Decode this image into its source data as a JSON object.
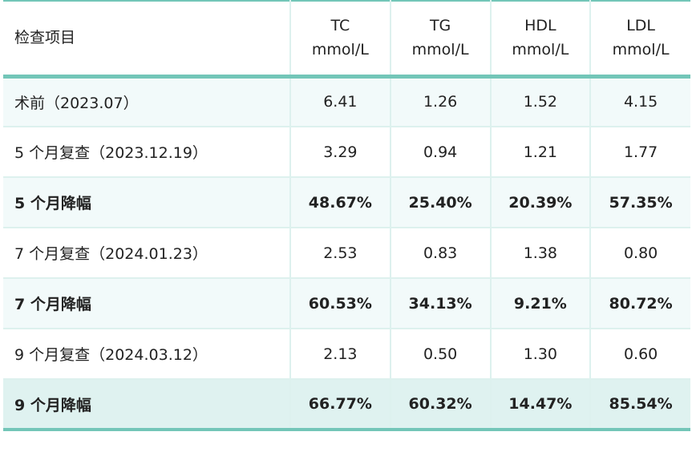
{
  "table": {
    "headers": [
      {
        "line1": "检查项目",
        "line2": ""
      },
      {
        "line1": "TC",
        "line2": "mmol/L"
      },
      {
        "line1": "TG",
        "line2": "mmol/L"
      },
      {
        "line1": "HDL",
        "line2": "mmol/L"
      },
      {
        "line1": "LDL",
        "line2": "mmol/L"
      }
    ],
    "rows": [
      {
        "label": "术前（2023.07）",
        "tc": "6.41",
        "tg": "1.26",
        "hdl": "1.52",
        "ldl": "4.15"
      },
      {
        "label": "5 个月复查（2023.12.19）",
        "tc": "3.29",
        "tg": "0.94",
        "hdl": "1.21",
        "ldl": "1.77"
      },
      {
        "label": "5 个月降幅",
        "tc": "48.67%",
        "tg": "25.40%",
        "hdl": "20.39%",
        "ldl": "57.35%"
      },
      {
        "label": "7 个月复查（2024.01.23）",
        "tc": "2.53",
        "tg": "0.83",
        "hdl": "1.38",
        "ldl": "0.80"
      },
      {
        "label": "7 个月降幅",
        "tc": "60.53%",
        "tg": "34.13%",
        "hdl": "9.21%",
        "ldl": "80.72%"
      },
      {
        "label": "9 个月复查（2024.03.12）",
        "tc": "2.13",
        "tg": "0.50",
        "hdl": "1.30",
        "ldl": "0.60"
      },
      {
        "label": "9 个月降幅",
        "tc": "66.77%",
        "tg": "60.32%",
        "hdl": "14.47%",
        "ldl": "85.54%"
      }
    ]
  },
  "colors": {
    "accent": "#73c6b8",
    "row_tint": "#f2fafa",
    "final_row": "#dff2f0",
    "divider": "#ddf1ee"
  }
}
